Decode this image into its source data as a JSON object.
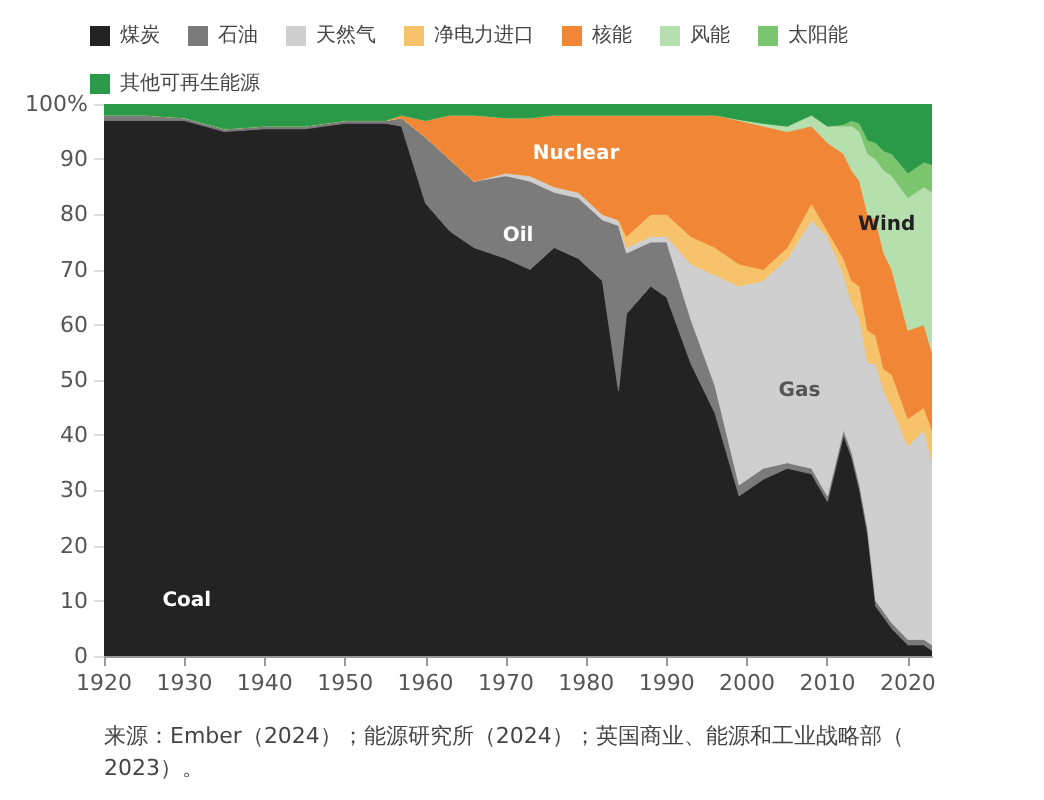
{
  "chart_data": {
    "type": "area",
    "stacked": true,
    "x": [
      1920,
      1925,
      1930,
      1935,
      1940,
      1945,
      1950,
      1955,
      1957,
      1960,
      1963,
      1966,
      1970,
      1973,
      1976,
      1979,
      1982,
      1984,
      1985,
      1988,
      1990,
      1993,
      1996,
      1999,
      2002,
      2005,
      2008,
      2010,
      2012,
      2013,
      2014,
      2015,
      2016,
      2017,
      2018,
      2020,
      2022,
      2023
    ],
    "series": [
      {
        "name": "煤炭",
        "color": "#232323",
        "values": [
          97,
          97,
          97,
          95,
          95.5,
          95.5,
          96.5,
          96.5,
          96,
          82,
          77,
          74,
          72,
          70,
          74,
          72,
          68,
          48,
          62,
          67,
          65,
          53,
          44,
          29,
          32,
          34,
          33,
          28,
          40,
          36,
          30,
          22,
          9,
          7,
          5,
          2,
          2,
          1
        ]
      },
      {
        "name": "石油",
        "color": "#7b7b7b",
        "values": [
          1,
          1,
          0.5,
          0.5,
          0.5,
          0.5,
          0.5,
          0.5,
          1.5,
          12,
          13,
          12,
          15,
          16,
          10,
          11,
          11,
          30,
          11,
          8,
          10,
          8,
          5,
          2,
          2,
          1,
          1,
          1,
          1,
          1,
          1,
          1,
          1,
          1,
          1,
          1,
          1,
          1
        ]
      },
      {
        "name": "天然气",
        "color": "#cfcfcf",
        "values": [
          0,
          0,
          0,
          0,
          0,
          0,
          0,
          0,
          0,
          0,
          0,
          0,
          0.5,
          1,
          1,
          1,
          1,
          1,
          1,
          1,
          1,
          10,
          20,
          36,
          34,
          37,
          45,
          47,
          28,
          27,
          30,
          30,
          43,
          40,
          39,
          35,
          38,
          33
        ]
      },
      {
        "name": "净电力进口",
        "color": "#f6c36a",
        "values": [
          0,
          0,
          0,
          0,
          0,
          0,
          0,
          0,
          0,
          0,
          0,
          0,
          0,
          0,
          0,
          0,
          0,
          0,
          2,
          4,
          4,
          5,
          5,
          4,
          2,
          2,
          3,
          1,
          3,
          4,
          6,
          6,
          5,
          4,
          6,
          5,
          4,
          6
        ]
      },
      {
        "name": "核能",
        "color": "#f08636",
        "values": [
          0,
          0,
          0,
          0,
          0,
          0,
          0,
          0,
          0.5,
          3,
          8,
          12,
          10,
          10.5,
          13,
          14,
          18,
          19,
          22,
          18,
          18,
          22,
          24,
          26,
          26,
          21,
          14,
          16,
          19,
          20,
          19,
          21,
          21,
          21,
          19,
          16,
          15,
          14
        ]
      },
      {
        "name": "风能",
        "color": "#b6dfae",
        "values": [
          0,
          0,
          0,
          0,
          0,
          0,
          0,
          0,
          0,
          0,
          0,
          0,
          0,
          0,
          0,
          0,
          0,
          0,
          0,
          0,
          0,
          0,
          0,
          0.2,
          0.5,
          1,
          2,
          3,
          5,
          8,
          9,
          11,
          11,
          15,
          17,
          24,
          25,
          29
        ]
      },
      {
        "name": "太阳能",
        "color": "#7cc56f",
        "values": [
          0,
          0,
          0,
          0,
          0,
          0,
          0,
          0,
          0,
          0,
          0,
          0,
          0,
          0,
          0,
          0,
          0,
          0,
          0,
          0,
          0,
          0,
          0,
          0,
          0,
          0,
          0,
          0,
          0.3,
          1,
          1.5,
          2.5,
          3,
          3.5,
          4,
          4.5,
          4.5,
          5
        ]
      },
      {
        "name": "其他可再生能源",
        "color": "#2a9a48",
        "values": [
          2,
          2,
          2.5,
          4.5,
          4,
          4,
          3,
          3,
          2,
          3,
          2,
          2,
          2.5,
          2.5,
          2,
          2,
          2,
          2,
          2,
          2,
          2,
          2,
          2,
          2.8,
          3.5,
          4,
          2,
          4,
          3.7,
          3,
          3.5,
          6.5,
          7,
          8.5,
          9,
          12.5,
          10.5,
          11
        ]
      }
    ],
    "xlim": [
      1920,
      2023
    ],
    "xticks": [
      1920,
      1930,
      1940,
      1950,
      1960,
      1970,
      1980,
      1990,
      2000,
      2010,
      2020
    ],
    "ylim": [
      0,
      100
    ],
    "yticks": [
      0,
      10,
      20,
      30,
      40,
      50,
      60,
      70,
      80,
      90,
      {
        "value": 100,
        "label": "100%"
      }
    ],
    "legend": "top",
    "annotations": [
      "Coal",
      "Oil",
      "Nuclear",
      "Gas",
      "Wind",
      "来源：Ember（2024）；能源研究所（2024）；英国商业、能源和工业战略部（2023）。"
    ]
  }
}
